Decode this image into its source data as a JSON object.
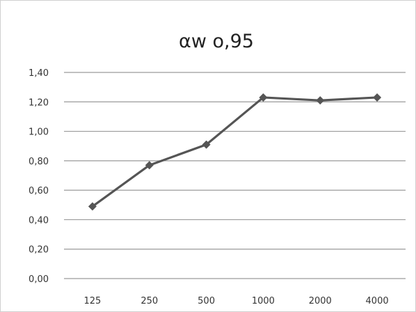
{
  "chart_data": {
    "type": "line",
    "title": "αw o,95",
    "categories": [
      "125",
      "250",
      "500",
      "1000",
      "2000",
      "4000"
    ],
    "series": [
      {
        "values": [
          0.49,
          0.77,
          0.91,
          1.23,
          1.21,
          1.23
        ]
      }
    ],
    "yticks": [
      "0,00",
      "0,20",
      "0,40",
      "0,60",
      "0,80",
      "1,00",
      "1,20",
      "1,40"
    ],
    "ylim": [
      0,
      1.4
    ],
    "grid": true,
    "legend": "none",
    "colors": {
      "line": "#555555",
      "marker": "#555555",
      "grid": "#9a9a9a"
    }
  }
}
